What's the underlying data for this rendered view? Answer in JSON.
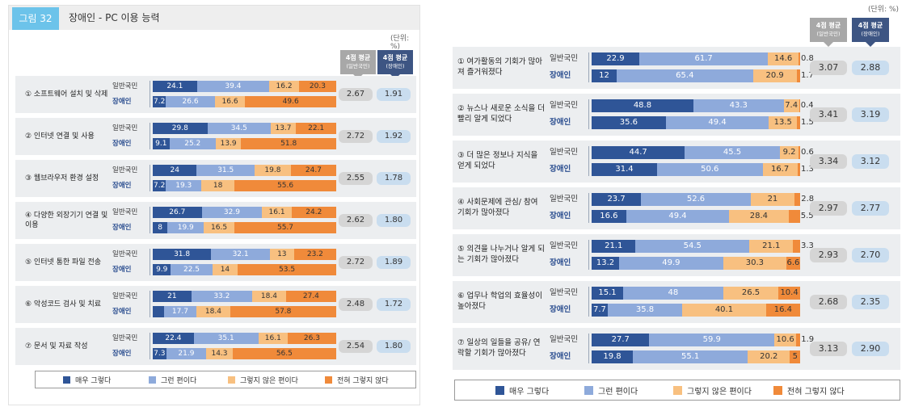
{
  "left": {
    "figure_number": "그림 32",
    "title": "장애인 - PC 이용 능력",
    "unit": "(단위: %)",
    "avg_headers": {
      "general": {
        "title": "4점 평균",
        "sub": "(일반국민)"
      },
      "disabled": {
        "title": "4점 평균",
        "sub": "(장애인)"
      }
    },
    "group_labels": {
      "general": "일반국민",
      "disabled": "장애인"
    },
    "legend": [
      "매우 그렇다",
      "그런 편이다",
      "그렇지 않은 편이다",
      "전혀 그렇지 않다"
    ]
  },
  "right": {
    "unit": "(단위: %)",
    "avg_headers": {
      "general": {
        "title": "4점 평균",
        "sub": "(일반국민)"
      },
      "disabled": {
        "title": "4점 평균",
        "sub": "(장애인)"
      }
    },
    "group_labels": {
      "general": "일반국민",
      "disabled": "장애인"
    },
    "legend": [
      "매우 그렇다",
      "그런 편이다",
      "그렇지 않은 편이다",
      "전혀 그렇지 않다"
    ]
  },
  "colors": {
    "very": "#2f5597",
    "somewhat": "#8eaadb",
    "not_much": "#f8c080",
    "not_at_all": "#f08a3a"
  },
  "chart_data": [
    {
      "type": "bar",
      "stacked": true,
      "orientation": "horizontal",
      "title": "장애인 - PC 이용 능력",
      "unit": "%",
      "series_names": [
        "매우 그렇다",
        "그런 편이다",
        "그렇지 않은 편이다",
        "전혀 그렇지 않다"
      ],
      "categories": [
        "① 소프트웨어 설치 및 삭제",
        "② 인터넷 연결 및 사용",
        "③ 웹브라우저 환경 설정",
        "④ 다양한 외장기기 연결 및 이용",
        "⑤ 인터넷 통한 파일 전송",
        "⑥ 악성코드 검사 및 치료",
        "⑦ 문서 및 자료 작성"
      ],
      "general": [
        [
          24.1,
          39.4,
          16.2,
          20.3
        ],
        [
          29.8,
          34.5,
          13.7,
          22.1
        ],
        [
          24.0,
          31.5,
          19.8,
          24.7
        ],
        [
          26.7,
          32.9,
          16.1,
          24.2
        ],
        [
          31.8,
          32.1,
          13.0,
          23.2
        ],
        [
          21.0,
          33.2,
          18.4,
          27.4
        ],
        [
          22.4,
          35.1,
          16.1,
          26.3
        ]
      ],
      "disabled": [
        [
          7.2,
          26.6,
          16.6,
          49.6
        ],
        [
          9.1,
          25.2,
          13.9,
          51.8
        ],
        [
          7.2,
          19.3,
          18.0,
          55.6
        ],
        [
          8.0,
          19.9,
          16.5,
          55.7
        ],
        [
          9.9,
          22.5,
          14.0,
          53.5
        ],
        [
          6.1,
          17.7,
          18.4,
          57.8
        ],
        [
          7.3,
          21.9,
          14.3,
          56.5
        ]
      ],
      "avg_general": [
        "2.67",
        "2.72",
        "2.55",
        "2.62",
        "2.72",
        "2.48",
        "2.54"
      ],
      "avg_disabled": [
        "1.91",
        "1.92",
        "1.78",
        "1.80",
        "1.89",
        "1.72",
        "1.80"
      ],
      "xlim": [
        0,
        100
      ]
    },
    {
      "type": "bar",
      "stacked": true,
      "orientation": "horizontal",
      "unit": "%",
      "series_names": [
        "매우 그렇다",
        "그런 편이다",
        "그렇지 않은 편이다",
        "전혀 그렇지 않다"
      ],
      "categories": [
        "① 여가활동의 기회가 많아져 즐거워졌다",
        "② 뉴스나 새로운 소식을 더 빨리 알게 되었다",
        "③ 더 많은 정보나 지식을 얻게 되었다",
        "④ 사회문제에 관심/ 참여 기회가 많아졌다",
        "⑤ 의견을 나누거나 알게 되는 기회가 많아졌다",
        "⑥ 업무나 학업의 효율성이 높아졌다",
        "⑦ 일상의 일들을 공유/ 연락할 기회가 많아졌다"
      ],
      "general": [
        [
          22.9,
          61.7,
          14.6,
          0.8
        ],
        [
          48.8,
          43.3,
          7.4,
          0.4
        ],
        [
          44.7,
          45.5,
          9.2,
          0.6
        ],
        [
          23.7,
          52.6,
          21.0,
          2.8
        ],
        [
          21.1,
          54.5,
          21.1,
          3.3
        ],
        [
          15.1,
          48.0,
          26.5,
          10.4
        ],
        [
          27.7,
          59.9,
          10.6,
          1.9
        ]
      ],
      "disabled": [
        [
          12.0,
          65.4,
          20.9,
          1.7
        ],
        [
          35.6,
          49.4,
          13.5,
          1.5
        ],
        [
          31.4,
          50.6,
          16.7,
          1.3
        ],
        [
          16.6,
          49.4,
          28.4,
          5.5
        ],
        [
          13.2,
          49.9,
          30.3,
          6.6
        ],
        [
          7.7,
          35.8,
          40.1,
          16.4
        ],
        [
          19.8,
          55.1,
          20.2,
          5.0
        ]
      ],
      "avg_general": [
        "3.07",
        "3.41",
        "3.34",
        "2.97",
        "2.93",
        "2.68",
        "3.13"
      ],
      "avg_disabled": [
        "2.88",
        "3.19",
        "3.12",
        "2.77",
        "2.70",
        "2.35",
        "2.90"
      ],
      "xlim": [
        0,
        100
      ]
    }
  ]
}
